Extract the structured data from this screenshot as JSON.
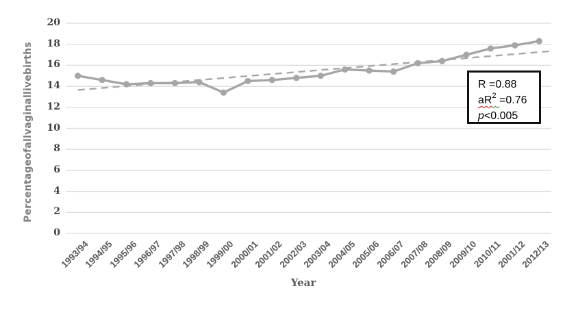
{
  "chart_data": {
    "type": "line",
    "title": "",
    "xlabel": "Year",
    "ylabel": "Percentageofallvaginallivebirths",
    "categories": [
      "1993/94",
      "1994/95",
      "1995/96",
      "1996/97",
      "1997/98",
      "1998/99",
      "1999/00",
      "2000/01",
      "2001/02",
      "2002/03",
      "2003/04",
      "2004/05",
      "2005/06",
      "2006/07",
      "2007/08",
      "2008/09",
      "2009/10",
      "2010/11",
      "2001/12",
      "2012/13"
    ],
    "series": [
      {
        "name": "Percentage of all vaginal live births",
        "type": "line-with-markers",
        "values": [
          15.0,
          14.6,
          14.2,
          14.3,
          14.3,
          14.4,
          13.4,
          14.5,
          14.6,
          14.8,
          15.0,
          15.6,
          15.5,
          15.4,
          16.2,
          16.4,
          17.0,
          17.6,
          17.9,
          18.3
        ]
      },
      {
        "name": "Linear trend",
        "type": "dashed-trendline",
        "start_value": 13.65,
        "end_value": 17.35
      }
    ],
    "ylim": [
      0,
      20
    ],
    "ytick_step": 2,
    "grid": true,
    "legend": false,
    "colors": {
      "series": "#a6a6a6",
      "trend": "#a6a6a6",
      "gridline": "#d9d9d9",
      "ytick_label": "#404040",
      "xtick_label": "#595959",
      "axis_title": "#7f7f7f",
      "annotation_border": "#111111"
    }
  },
  "annotation": {
    "line1": "R =0.88",
    "line2_prefix": "aR",
    "line2_sup": "2",
    "line2_suffix": "=0.76",
    "line3_italic": "p",
    "line3_rest": "<0.005"
  }
}
